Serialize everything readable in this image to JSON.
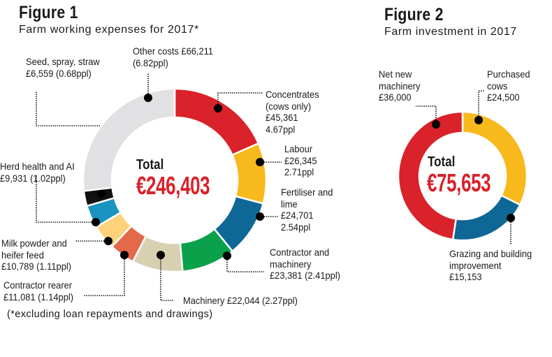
{
  "chart_data": [
    {
      "type": "pie",
      "variant": "donut",
      "title": "Figure 1",
      "subtitle": "Farm working expenses for 2017*",
      "center_label": "Total",
      "center_value": "€246,403",
      "footnote": "(*excluding loan repayments and drawings)",
      "slices": [
        {
          "key": "concentrates",
          "value": 45361,
          "color": "#d9222a",
          "label": [
            "Concentrates",
            "(cows only)",
            "£45,361",
            "4.67ppl"
          ]
        },
        {
          "key": "labour",
          "value": 26345,
          "color": "#f8b91c",
          "label": [
            "Labour",
            "£26,345",
            "2.71ppl"
          ]
        },
        {
          "key": "fertiliser",
          "value": 24701,
          "color": "#0f6796",
          "label": [
            "Fertiliser and",
            "lime",
            "£24,701",
            "2.54ppl"
          ]
        },
        {
          "key": "contractor-machinery",
          "value": 23381,
          "color": "#0aa14a",
          "label": [
            "Contractor and",
            "machinery",
            "£23,381 (2.41ppl)"
          ]
        },
        {
          "key": "machinery",
          "value": 22044,
          "color": "#d7d1b1",
          "label": [
            "Machinery £22,044 (2.27ppl)"
          ]
        },
        {
          "key": "contractor-rearer",
          "value": 11081,
          "color": "#e4684a",
          "label": [
            "Contractor rearer",
            "£11,081 (1.14ppl)"
          ]
        },
        {
          "key": "milk-powder",
          "value": 10789,
          "color": "#fdd27a",
          "label": [
            "Milk powder and",
            "heifer feed",
            "£10,789 (1.11ppl)"
          ]
        },
        {
          "key": "herd-health",
          "value": 9931,
          "color": "#1a93c0",
          "label": [
            "Herd health and AI",
            "£9,931 (1.02ppl)"
          ]
        },
        {
          "key": "seed-spray-straw",
          "value": 6559,
          "color": "#111111",
          "label": [
            "Seed, spray, straw",
            "£6,559 (0.68ppl)"
          ]
        },
        {
          "key": "other-costs",
          "value": 66211,
          "color": "#e1e1e3",
          "label": [
            "Other costs £66,211",
            "(6.82ppl)"
          ]
        }
      ]
    },
    {
      "type": "pie",
      "variant": "donut",
      "title": "Figure 2",
      "subtitle": "Farm investment in 2017",
      "center_label": "Total",
      "center_value": "€75,653",
      "slices": [
        {
          "key": "purchased-cows",
          "value": 24500,
          "color": "#f8b91c",
          "label": [
            "Purchased",
            "cows",
            "£24,500"
          ]
        },
        {
          "key": "grazing-building",
          "value": 15153,
          "color": "#0f6796",
          "label": [
            "Grazing and building",
            "improvement",
            "£15,153"
          ]
        },
        {
          "key": "net-new-machinery",
          "value": 36000,
          "color": "#d9222a",
          "label": [
            "Net new",
            "machinery",
            "£36,000"
          ]
        }
      ]
    }
  ]
}
